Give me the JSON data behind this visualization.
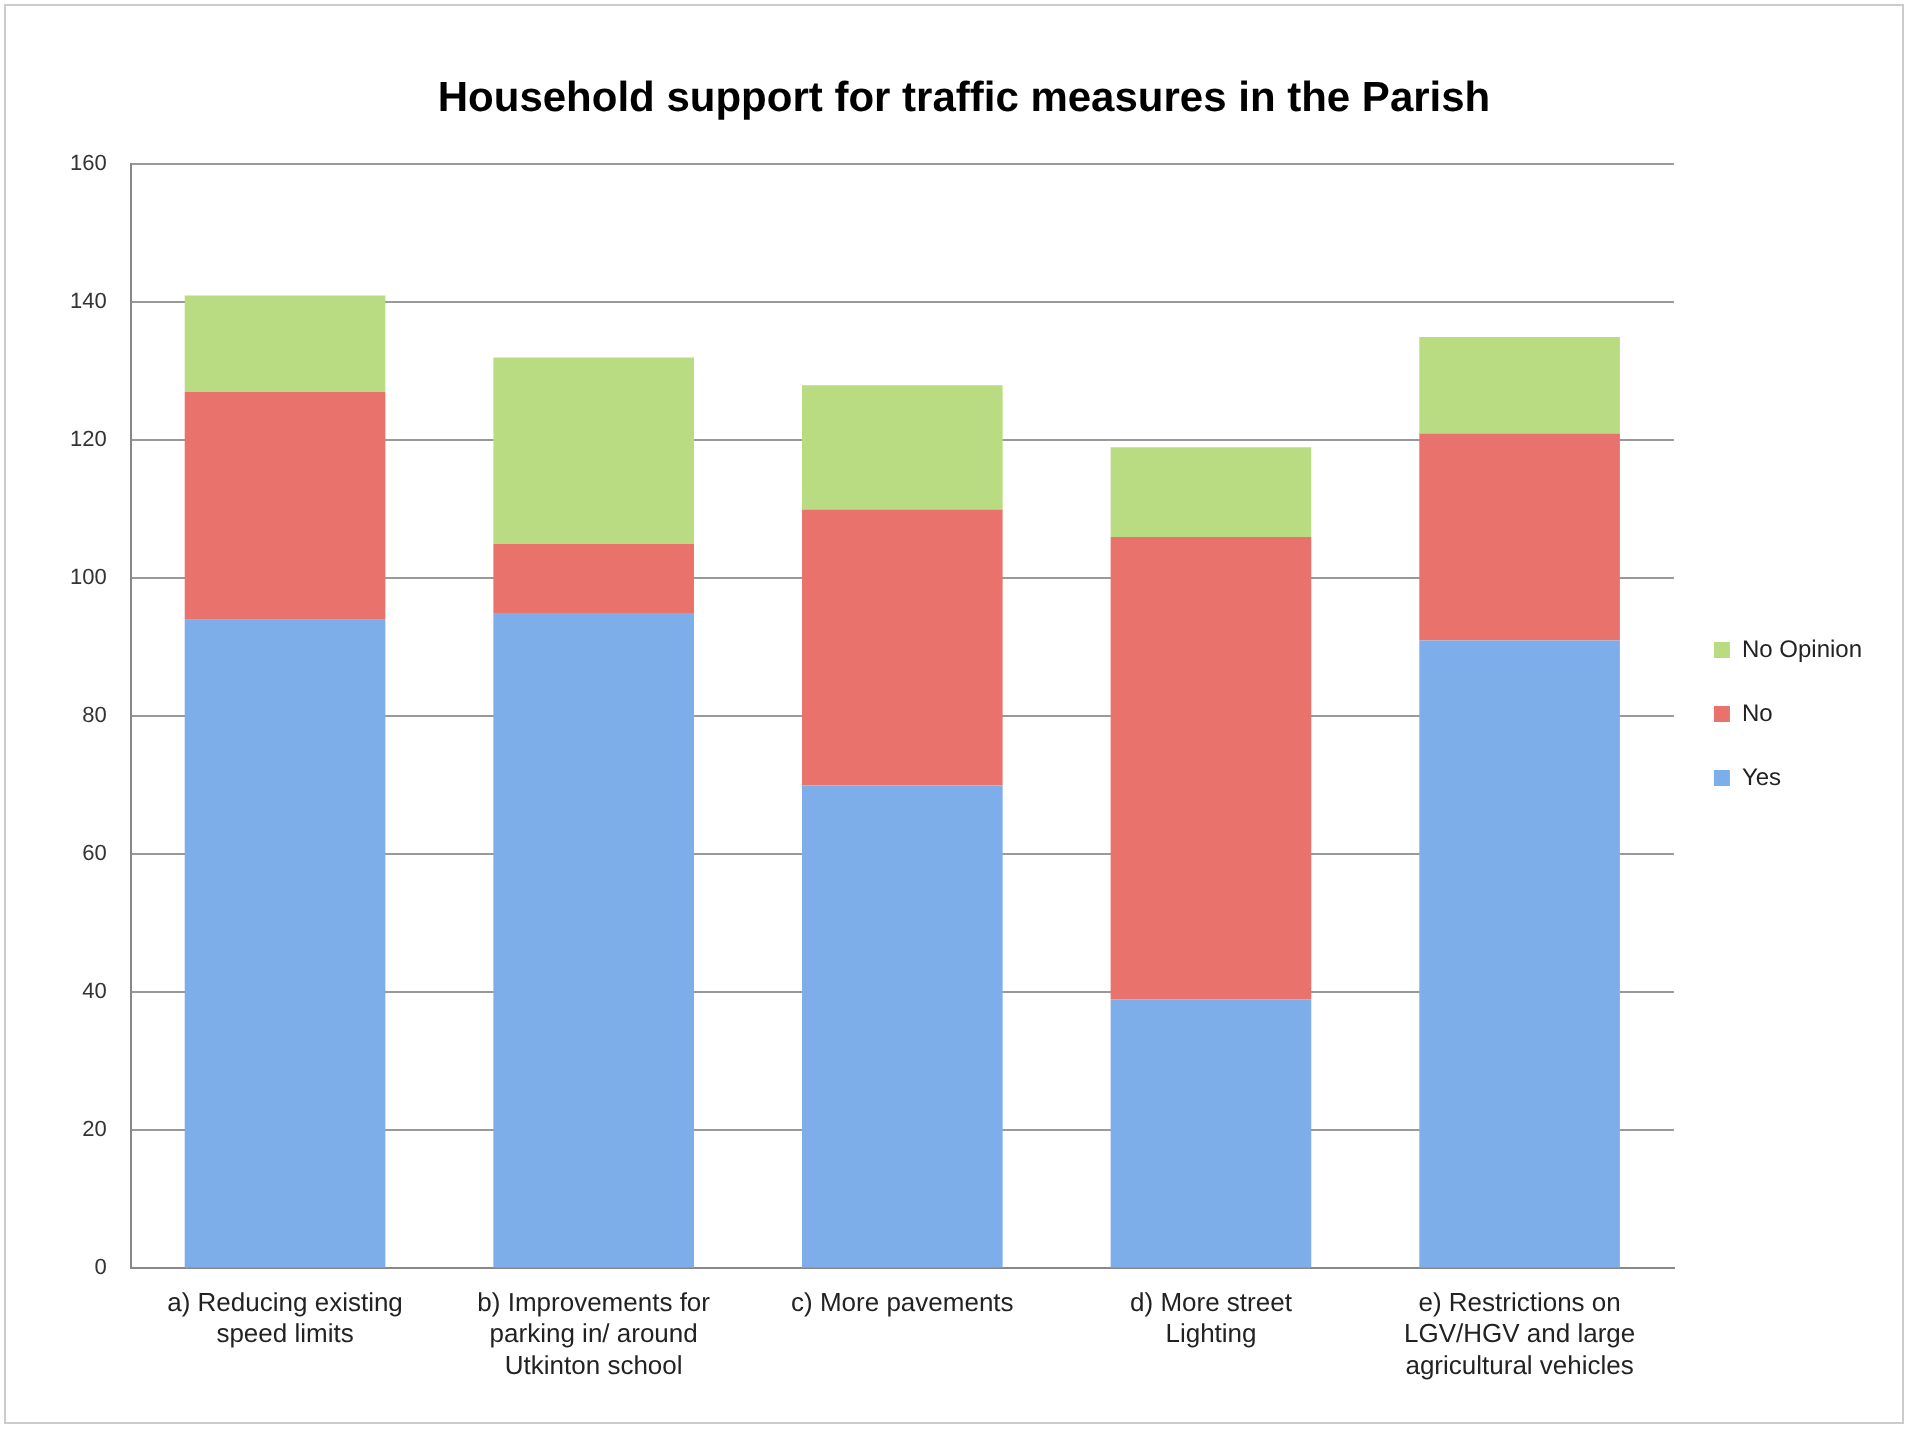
{
  "chart_data": {
    "type": "bar",
    "title": "Household support for traffic measures in the Parish",
    "categories": [
      "a) Reducing existing speed limits",
      "b) Improvements for parking in/ around Utkinton school",
      "c) More pavements",
      "d) More street Lighting",
      "e) Restrictions on LGV/HGV and large agricultural vehicles"
    ],
    "series": [
      {
        "name": "Yes",
        "color": "#7eaeea",
        "values": [
          94,
          95,
          70,
          39,
          91
        ]
      },
      {
        "name": "No",
        "color": "#e9736c",
        "values": [
          33,
          10,
          40,
          67,
          30
        ]
      },
      {
        "name": "No Opinion",
        "color": "#b9dc82",
        "values": [
          14,
          27,
          18,
          13,
          14
        ]
      }
    ],
    "stacked": true,
    "ylim": [
      0,
      160
    ],
    "yticks": [
      0,
      20,
      40,
      60,
      80,
      100,
      120,
      140,
      160
    ],
    "grid": "y",
    "legend": "right"
  }
}
